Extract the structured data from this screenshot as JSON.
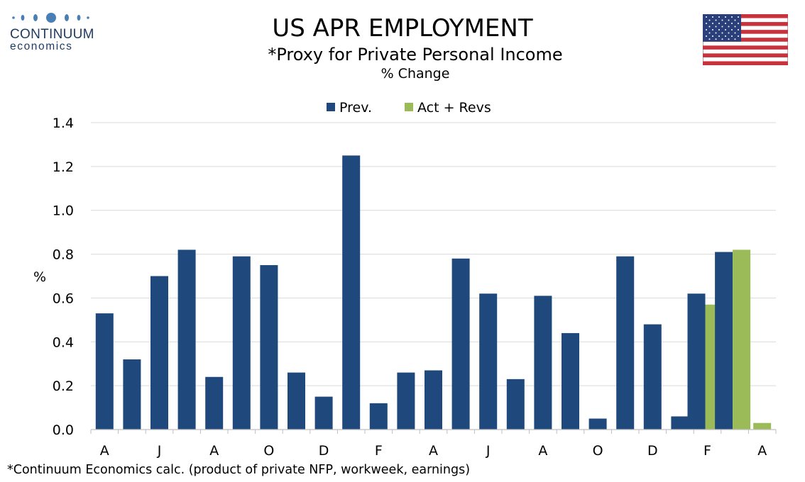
{
  "logo": {
    "line1": "CONTINUUM",
    "line2": "economics"
  },
  "header": {
    "title": "US APR EMPLOYMENT",
    "subtitle": "*Proxy for Private Personal Income",
    "subtitle2": "% Change"
  },
  "footnote": "*Continuum Economics calc. (product of private NFP, workweek, earnings)",
  "colors": {
    "prev": "#1f497d",
    "act": "#9bbb59",
    "grid": "#d9d9d9",
    "logo": "#1f3a5f"
  },
  "chart_data": {
    "type": "bar",
    "ylabel": "%",
    "ylim": [
      0,
      1.4
    ],
    "yticks": [
      "0.0",
      "0.2",
      "0.4",
      "0.6",
      "0.8",
      "1.0",
      "1.2",
      "1.4"
    ],
    "x_tick_labels": [
      "A",
      "J",
      "A",
      "O",
      "D",
      "F",
      "A",
      "J",
      "A",
      "O",
      "D",
      "F",
      "A"
    ],
    "grid": true,
    "legend_position": "top-center",
    "series": [
      {
        "name": "Prev.",
        "color": "#1f497d",
        "values": [
          0.53,
          0.32,
          0.7,
          0.82,
          0.24,
          0.79,
          0.75,
          0.26,
          0.15,
          1.25,
          0.12,
          0.26,
          0.27,
          0.78,
          0.62,
          0.23,
          0.61,
          0.44,
          0.05,
          0.79,
          0.48,
          0.06,
          0.62,
          0.81,
          null
        ]
      },
      {
        "name": "Act + Revs",
        "color": "#9bbb59",
        "values": [
          null,
          null,
          null,
          null,
          null,
          null,
          null,
          null,
          null,
          null,
          null,
          null,
          null,
          null,
          null,
          null,
          null,
          null,
          null,
          null,
          null,
          null,
          0.57,
          0.82,
          0.03
        ]
      }
    ]
  }
}
